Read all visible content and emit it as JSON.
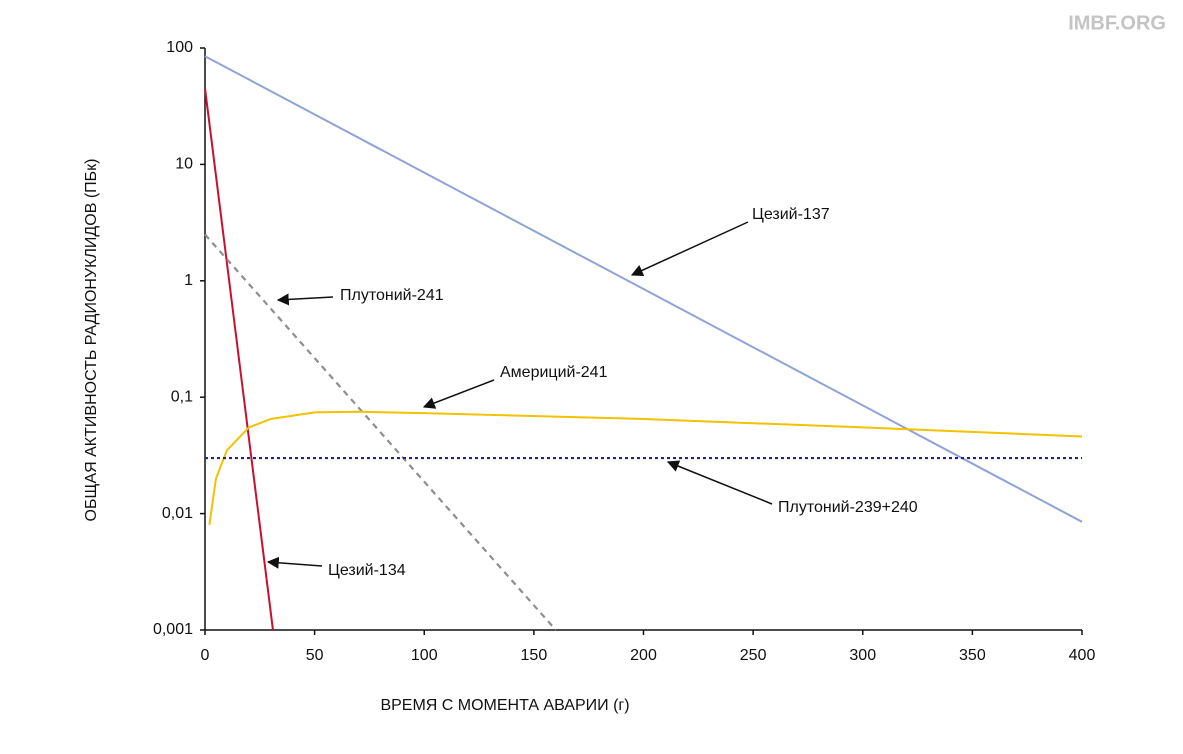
{
  "watermark": "IMBF.ORG",
  "chart_data": {
    "type": "line",
    "xlabel": "ВРЕМЯ С МОМЕНТА АВАРИИ (г)",
    "ylabel": "ОБЩАЯ АКТИВНОСТЬ РАДИОНУКЛИДОВ (ПБк)",
    "xlim": [
      0,
      400
    ],
    "xticks": [
      0,
      50,
      100,
      150,
      200,
      250,
      300,
      350,
      400
    ],
    "ylim": [
      0.001,
      100
    ],
    "yscale": "log",
    "yticks": [
      {
        "value": 0.001,
        "label": "0,001"
      },
      {
        "value": 0.01,
        "label": "0,01"
      },
      {
        "value": 0.1,
        "label": "0,1"
      },
      1,
      10,
      100
    ],
    "grid": false,
    "series": [
      {
        "name": "Цезий-137",
        "color": "#8fa3d6",
        "dash": "solid",
        "x": [
          0,
          100,
          200,
          300,
          400
        ],
        "values": [
          85,
          8.5,
          0.85,
          0.085,
          0.0085
        ]
      },
      {
        "name": "Цезий-134",
        "color": "#c8102e",
        "dash": "solid",
        "x": [
          0,
          31
        ],
        "values": [
          45,
          0.001
        ]
      },
      {
        "name": "Плутоний-241",
        "color": "#8a8f94",
        "dash": "dashed",
        "x": [
          0,
          160
        ],
        "values": [
          2.5,
          0.001
        ]
      },
      {
        "name": "Америций-241",
        "color": "#f2c200",
        "dash": "solid",
        "x": [
          2,
          5,
          10,
          20,
          30,
          50,
          70,
          100,
          200,
          300,
          400
        ],
        "values": [
          0.008,
          0.02,
          0.035,
          0.055,
          0.065,
          0.074,
          0.075,
          0.073,
          0.065,
          0.055,
          0.046
        ]
      },
      {
        "name": "Плутоний-239+240",
        "color": "#1a2a80",
        "dash": "dotted",
        "x": [
          0,
          400
        ],
        "values": [
          0.03,
          0.03
        ]
      }
    ],
    "annotations": [
      {
        "text": "Цезий-137"
      },
      {
        "text": "Цезий-134"
      },
      {
        "text": "Плутоний-241"
      },
      {
        "text": "Америций-241"
      },
      {
        "text": "Плутоний-239+240"
      }
    ]
  }
}
